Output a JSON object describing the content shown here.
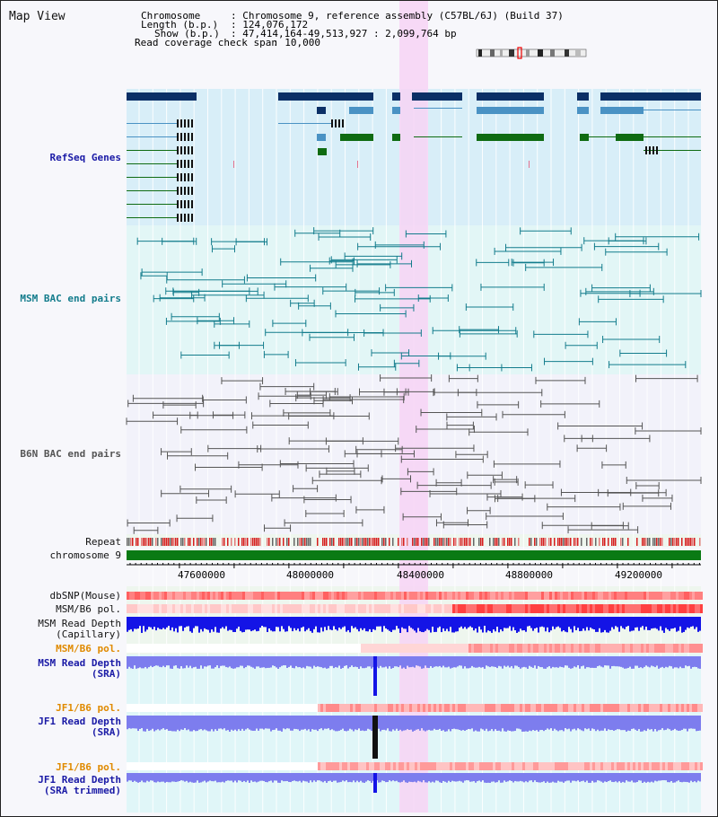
{
  "map_title": "Map View",
  "header": {
    "chromosome_key": "Chromosome",
    "chromosome_val": ": Chromosome 9, reference assembly (C57BL/6J) (Build 37)",
    "length_key": "Length (b.p.)",
    "length_val": ": 124,076,172",
    "show_key": "Show (b.p.)",
    "show_val": ": 47,414,164-49,513,927 : 2,099,764 bp",
    "coverage_key": "Read coverage check span",
    "coverage_val": ": 10,000"
  },
  "tracks": {
    "refseq": "RefSeq Genes",
    "msm_bac": "MSM BAC end pairs",
    "b6n_bac": "B6N BAC end pairs",
    "repeat": "Repeat",
    "chromosome": "chromosome 9",
    "dbsnp": "dbSNP(Mouse)",
    "msm_b6_pol_1": "MSM/B6 pol.",
    "msm_read_depth_cap_1": "MSM Read Depth",
    "msm_read_depth_cap_2": "(Capillary)",
    "msm_b6_pol_2": "MSM/B6 pol.",
    "msm_read_depth_sra_1": "MSM Read Depth",
    "msm_read_depth_sra_2": "(SRA)",
    "jf1_b6_pol_1": "JF1/B6 pol.",
    "jf1_read_depth_sra_1": "JF1 Read Depth",
    "jf1_read_depth_sra_2": "(SRA)",
    "jf1_b6_pol_2": "JF1/B6 pol.",
    "jf1_read_depth_trim_1": "JF1 Read Depth",
    "jf1_read_depth_trim_2": "(SRA trimmed)"
  },
  "axis": {
    "ticks": [
      "47600000",
      "48000000",
      "48400000",
      "48800000",
      "49200000"
    ]
  },
  "colors": {
    "refseq_bg": "#d8eef8",
    "msm_bg": "#e2f6f6",
    "b6n_bg": "#f2f2fa",
    "highlight": "#f7d4f4",
    "gene_dark": "#0b2f66",
    "gene_mid": "#4a92c4",
    "gene_green": "#0f6b12",
    "chromosome_bar": "#0a7a14",
    "msm_line": "#137c8c",
    "b6n_line": "#555555",
    "depth_blue": "#1414e6",
    "depth_light": "#7d7dee"
  }
}
